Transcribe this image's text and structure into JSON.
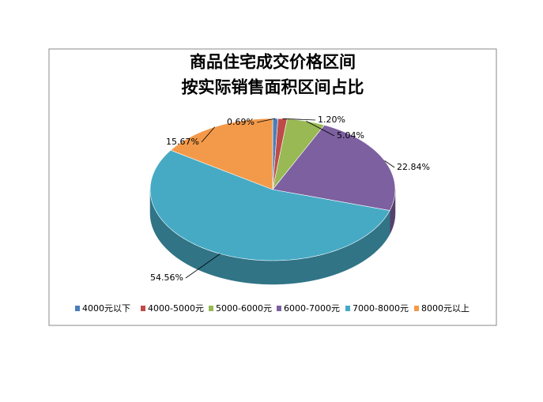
{
  "chart_data": {
    "type": "pie3d",
    "title": [
      "商品住宅成交价格区间",
      "按实际销售面积区间占比"
    ],
    "categories": [
      "4000元以下",
      "4000-5000元",
      "5000-6000元",
      "6000-7000元",
      "7000-8000元",
      "8000元以上"
    ],
    "values": [
      0.69,
      1.2,
      5.04,
      22.84,
      54.56,
      15.67
    ],
    "value_labels": [
      "0.69%",
      "1.20%",
      "5.04%",
      "22.84%",
      "54.56%",
      "15.67%"
    ],
    "colors": [
      "#4a7ebb",
      "#be4b48",
      "#98b954",
      "#7d60a0",
      "#46aac5",
      "#f39a4a"
    ],
    "legend": "bottom"
  }
}
